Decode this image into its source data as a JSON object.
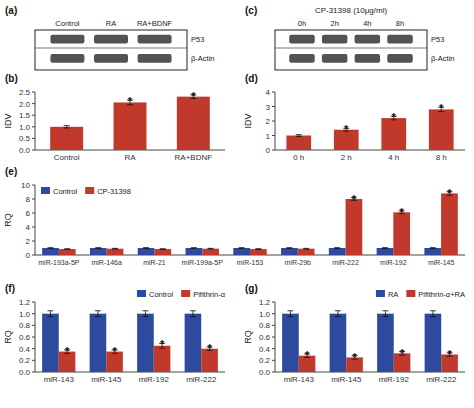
{
  "chart_data": [
    {
      "type": "blot",
      "title": "(a)",
      "categories": [
        "Control",
        "RA",
        "RA+BDNF"
      ],
      "annotations": [
        "P53",
        "β-Actin"
      ],
      "color": "#1a1a1a"
    },
    {
      "type": "bar",
      "title": "(b)",
      "categories": [
        "Control",
        "RA",
        "RA+BDNF"
      ],
      "values": [
        1.0,
        2.05,
        2.3
      ],
      "errors": [
        0.05,
        0.1,
        0.08
      ],
      "color": "#c0392b",
      "ylabel": "IDV",
      "ylim": [
        0,
        2.5
      ],
      "yticks": [
        {
          "value": 0,
          "label": "0.0"
        },
        0.5,
        {
          "value": 1.0,
          "label": "1.0"
        },
        1.5,
        {
          "value": 2.0,
          "label": "2.0"
        },
        2.5
      ],
      "annotations": [
        {
          "text": "*",
          "category": "RA"
        },
        {
          "text": "*",
          "category": "RA+BDNF"
        }
      ]
    },
    {
      "type": "blot",
      "title": "(c)",
      "subtitle": "CP-31398 (10μg/ml)",
      "categories": [
        "0h",
        "2h",
        "4h",
        "8h"
      ],
      "annotations": [
        "P53",
        "β-Actin"
      ],
      "color": "#1a1a1a"
    },
    {
      "type": "bar",
      "title": "(d)",
      "categories": [
        "0 h",
        "2 h",
        "4 h",
        "8 h"
      ],
      "values": [
        1.0,
        1.4,
        2.2,
        2.8
      ],
      "errors": [
        0.06,
        0.1,
        0.12,
        0.15
      ],
      "color": "#c0392b",
      "ylabel": "IDV",
      "ylim": [
        0,
        4
      ],
      "yticks": [
        0,
        1,
        2,
        3,
        4
      ],
      "annotations": [
        {
          "text": "*",
          "category": "2 h"
        },
        {
          "text": "*",
          "category": "4 h"
        },
        {
          "text": "*",
          "category": "8 h"
        }
      ]
    },
    {
      "type": "bar",
      "title": "(e)",
      "categories": [
        "miR-193a-5P",
        "miR-146a",
        "miR-21",
        "miR-199a-5P",
        "miR-153",
        "miR-29b",
        "miR-222",
        "miR-192",
        "miR-145"
      ],
      "series": [
        {
          "name": "Control",
          "color": "#2e4a9e",
          "values": [
            1.0,
            1.0,
            1.0,
            1.0,
            1.0,
            1.0,
            1.0,
            1.0,
            1.0
          ],
          "errors": [
            0.05,
            0.05,
            0.05,
            0.05,
            0.05,
            0.05,
            0.05,
            0.05,
            0.05
          ]
        },
        {
          "name": "CP-31398",
          "color": "#c0392b",
          "values": [
            0.85,
            0.9,
            0.85,
            0.9,
            0.85,
            0.9,
            8.0,
            6.1,
            8.8
          ],
          "errors": [
            0.05,
            0.05,
            0.05,
            0.05,
            0.05,
            0.05,
            0.2,
            0.2,
            0.25
          ]
        }
      ],
      "ylabel": "RQ",
      "ylim": [
        0,
        10
      ],
      "yticks": [
        0,
        2,
        4,
        6,
        8,
        10
      ],
      "legend": "upper left",
      "annotations": [
        {
          "text": "*",
          "category": "miR-222",
          "series": "CP-31398"
        },
        {
          "text": "*",
          "category": "miR-192",
          "series": "CP-31398"
        },
        {
          "text": "*",
          "category": "miR-145",
          "series": "CP-31398"
        }
      ]
    },
    {
      "type": "bar",
      "title": "(f)",
      "categories": [
        "miR-143",
        "miR-145",
        "miR-192",
        "miR-222"
      ],
      "series": [
        {
          "name": "Control",
          "color": "#2e4a9e",
          "values": [
            1.0,
            1.0,
            1.0,
            1.0
          ],
          "errors": [
            0.05,
            0.05,
            0.05,
            0.05
          ]
        },
        {
          "name": "Pifithrin-α",
          "color": "#c0392b",
          "values": [
            0.35,
            0.35,
            0.45,
            0.4
          ],
          "errors": [
            0.03,
            0.03,
            0.04,
            0.03
          ]
        }
      ],
      "ylabel": "RQ",
      "ylim": [
        0,
        1.2
      ],
      "yticks": [
        {
          "value": 0,
          "label": "0.0"
        },
        0.2,
        0.4,
        0.6,
        0.8,
        {
          "value": 1.0,
          "label": "1.0"
        },
        1.2
      ],
      "legend": "upper right",
      "annotations": [
        {
          "text": "*",
          "category": "miR-143",
          "series": "Pifithrin-α"
        },
        {
          "text": "*",
          "category": "miR-145",
          "series": "Pifithrin-α"
        },
        {
          "text": "*",
          "category": "miR-192",
          "series": "Pifithrin-α"
        },
        {
          "text": "*",
          "category": "miR-222",
          "series": "Pifithrin-α"
        }
      ]
    },
    {
      "type": "bar",
      "title": "(g)",
      "categories": [
        "miR-143",
        "miR-145",
        "miR-192",
        "miR-222"
      ],
      "series": [
        {
          "name": "RA",
          "color": "#2e4a9e",
          "values": [
            1.0,
            1.0,
            1.0,
            1.0
          ],
          "errors": [
            0.05,
            0.05,
            0.05,
            0.05
          ]
        },
        {
          "name": "Pifithrin-α+RA",
          "color": "#c0392b",
          "values": [
            0.28,
            0.25,
            0.32,
            0.3
          ],
          "errors": [
            0.03,
            0.03,
            0.03,
            0.03
          ]
        }
      ],
      "ylabel": "RQ",
      "ylim": [
        0,
        1.2
      ],
      "yticks": [
        {
          "value": 0,
          "label": "0.0"
        },
        0.2,
        0.4,
        0.6,
        0.8,
        {
          "value": 1.0,
          "label": "1.0"
        },
        1.2
      ],
      "legend": "upper right",
      "annotations": [
        {
          "text": "*",
          "category": "miR-143",
          "series": "Pifithrin-α+RA"
        },
        {
          "text": "*",
          "category": "miR-145",
          "series": "Pifithrin-α+RA"
        },
        {
          "text": "*",
          "category": "miR-192",
          "series": "Pifithrin-α+RA"
        },
        {
          "text": "*",
          "category": "miR-222",
          "series": "Pifithrin-α+RA"
        }
      ]
    }
  ]
}
